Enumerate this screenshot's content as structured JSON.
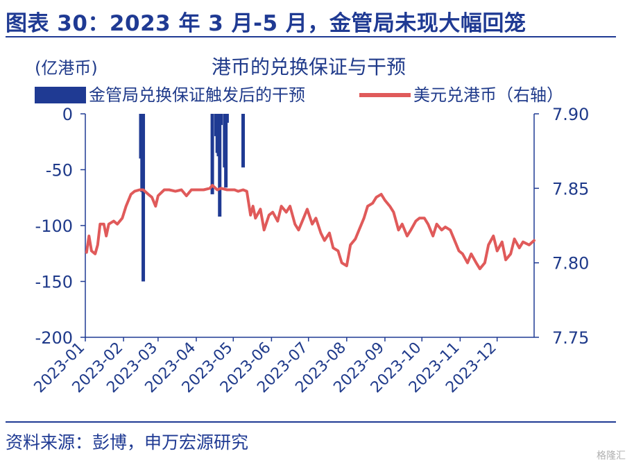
{
  "figure_title": "图表 30：2023 年 3 月-5 月，金管局未现大幅回笼",
  "source": "资料来源：彭博，申万宏源研究",
  "watermark": "格隆汇",
  "colors": {
    "intervention": "#1f3a93",
    "usdhkd": "#e05a5a",
    "axis": "#1f3a93"
  },
  "chart_data": {
    "type": "bar+line",
    "title": "港币的兑换保证与干预",
    "left_axis_unit": "(亿港币)",
    "legend": [
      "金管局兑换保证触发后的干预",
      "美元兑港币（右轴）"
    ],
    "legend_placement": "top",
    "y_left": {
      "range": [
        -200,
        0
      ],
      "ticks": [
        0,
        -50,
        -100,
        -150,
        -200
      ]
    },
    "y_right": {
      "range": [
        7.75,
        7.9
      ],
      "ticks": [
        "7.90",
        "7.85",
        "7.80",
        "7.75"
      ]
    },
    "x_range": [
      "2023-01-01",
      "2023-12-31"
    ],
    "x_ticks": [
      "2023-01",
      "2023-02",
      "2023-03",
      "2023-04",
      "2023-05",
      "2023-06",
      "2023-07",
      "2023-08",
      "2023-09",
      "2023-10",
      "2023-11",
      "2023-12"
    ],
    "grid": false,
    "series": [
      {
        "name": "金管局兑换保证触发后的干预",
        "kind": "bar",
        "axis": "left",
        "points": [
          {
            "x": "2023-02-15",
            "y": -40
          },
          {
            "x": "2023-02-16",
            "y": -70
          },
          {
            "x": "2023-02-17",
            "y": -150
          },
          {
            "x": "2023-04-14",
            "y": -72
          },
          {
            "x": "2023-04-17",
            "y": -20
          },
          {
            "x": "2023-04-18",
            "y": -35
          },
          {
            "x": "2023-04-19",
            "y": -38
          },
          {
            "x": "2023-04-20",
            "y": -92
          },
          {
            "x": "2023-04-21",
            "y": -10
          },
          {
            "x": "2023-04-24",
            "y": -48
          },
          {
            "x": "2023-04-25",
            "y": -66
          },
          {
            "x": "2023-04-26",
            "y": -8
          },
          {
            "x": "2023-05-09",
            "y": -48
          }
        ]
      },
      {
        "name": "美元兑港币（右轴）",
        "kind": "line",
        "axis": "right",
        "points": [
          {
            "x": "2023-01-02",
            "y": 7.807
          },
          {
            "x": "2023-01-04",
            "y": 7.818
          },
          {
            "x": "2023-01-06",
            "y": 7.808
          },
          {
            "x": "2023-01-09",
            "y": 7.806
          },
          {
            "x": "2023-01-11",
            "y": 7.812
          },
          {
            "x": "2023-01-13",
            "y": 7.826
          },
          {
            "x": "2023-01-16",
            "y": 7.826
          },
          {
            "x": "2023-01-18",
            "y": 7.818
          },
          {
            "x": "2023-01-20",
            "y": 7.826
          },
          {
            "x": "2023-01-24",
            "y": 7.828
          },
          {
            "x": "2023-01-27",
            "y": 7.826
          },
          {
            "x": "2023-01-31",
            "y": 7.83
          },
          {
            "x": "2023-02-03",
            "y": 7.838
          },
          {
            "x": "2023-02-07",
            "y": 7.846
          },
          {
            "x": "2023-02-10",
            "y": 7.848
          },
          {
            "x": "2023-02-14",
            "y": 7.849
          },
          {
            "x": "2023-02-17",
            "y": 7.849
          },
          {
            "x": "2023-02-21",
            "y": 7.846
          },
          {
            "x": "2023-02-24",
            "y": 7.844
          },
          {
            "x": "2023-02-27",
            "y": 7.838
          },
          {
            "x": "2023-03-01",
            "y": 7.845
          },
          {
            "x": "2023-03-06",
            "y": 7.849
          },
          {
            "x": "2023-03-10",
            "y": 7.849
          },
          {
            "x": "2023-03-15",
            "y": 7.848
          },
          {
            "x": "2023-03-20",
            "y": 7.849
          },
          {
            "x": "2023-03-24",
            "y": 7.845
          },
          {
            "x": "2023-03-28",
            "y": 7.849
          },
          {
            "x": "2023-04-03",
            "y": 7.849
          },
          {
            "x": "2023-04-07",
            "y": 7.849
          },
          {
            "x": "2023-04-12",
            "y": 7.85
          },
          {
            "x": "2023-04-14",
            "y": 7.852
          },
          {
            "x": "2023-04-18",
            "y": 7.849
          },
          {
            "x": "2023-04-21",
            "y": 7.85
          },
          {
            "x": "2023-04-26",
            "y": 7.849
          },
          {
            "x": "2023-05-02",
            "y": 7.849
          },
          {
            "x": "2023-05-05",
            "y": 7.848
          },
          {
            "x": "2023-05-09",
            "y": 7.849
          },
          {
            "x": "2023-05-12",
            "y": 7.848
          },
          {
            "x": "2023-05-15",
            "y": 7.832
          },
          {
            "x": "2023-05-17",
            "y": 7.838
          },
          {
            "x": "2023-05-19",
            "y": 7.83
          },
          {
            "x": "2023-05-23",
            "y": 7.836
          },
          {
            "x": "2023-05-26",
            "y": 7.822
          },
          {
            "x": "2023-05-30",
            "y": 7.832
          },
          {
            "x": "2023-06-02",
            "y": 7.834
          },
          {
            "x": "2023-06-06",
            "y": 7.828
          },
          {
            "x": "2023-06-09",
            "y": 7.838
          },
          {
            "x": "2023-06-13",
            "y": 7.834
          },
          {
            "x": "2023-06-16",
            "y": 7.838
          },
          {
            "x": "2023-06-20",
            "y": 7.826
          },
          {
            "x": "2023-06-23",
            "y": 7.822
          },
          {
            "x": "2023-06-27",
            "y": 7.83
          },
          {
            "x": "2023-06-30",
            "y": 7.836
          },
          {
            "x": "2023-07-04",
            "y": 7.826
          },
          {
            "x": "2023-07-07",
            "y": 7.83
          },
          {
            "x": "2023-07-11",
            "y": 7.82
          },
          {
            "x": "2023-07-14",
            "y": 7.815
          },
          {
            "x": "2023-07-18",
            "y": 7.82
          },
          {
            "x": "2023-07-21",
            "y": 7.81
          },
          {
            "x": "2023-07-25",
            "y": 7.808
          },
          {
            "x": "2023-07-28",
            "y": 7.8
          },
          {
            "x": "2023-08-01",
            "y": 7.798
          },
          {
            "x": "2023-08-04",
            "y": 7.812
          },
          {
            "x": "2023-08-08",
            "y": 7.816
          },
          {
            "x": "2023-08-11",
            "y": 7.822
          },
          {
            "x": "2023-08-15",
            "y": 7.83
          },
          {
            "x": "2023-08-18",
            "y": 7.838
          },
          {
            "x": "2023-08-22",
            "y": 7.84
          },
          {
            "x": "2023-08-25",
            "y": 7.844
          },
          {
            "x": "2023-08-29",
            "y": 7.846
          },
          {
            "x": "2023-09-01",
            "y": 7.842
          },
          {
            "x": "2023-09-05",
            "y": 7.838
          },
          {
            "x": "2023-09-08",
            "y": 7.834
          },
          {
            "x": "2023-09-12",
            "y": 7.822
          },
          {
            "x": "2023-09-15",
            "y": 7.826
          },
          {
            "x": "2023-09-19",
            "y": 7.818
          },
          {
            "x": "2023-09-22",
            "y": 7.822
          },
          {
            "x": "2023-09-26",
            "y": 7.828
          },
          {
            "x": "2023-09-29",
            "y": 7.83
          },
          {
            "x": "2023-10-03",
            "y": 7.83
          },
          {
            "x": "2023-10-06",
            "y": 7.826
          },
          {
            "x": "2023-10-10",
            "y": 7.818
          },
          {
            "x": "2023-10-13",
            "y": 7.826
          },
          {
            "x": "2023-10-17",
            "y": 7.822
          },
          {
            "x": "2023-10-20",
            "y": 7.824
          },
          {
            "x": "2023-10-24",
            "y": 7.822
          },
          {
            "x": "2023-10-27",
            "y": 7.816
          },
          {
            "x": "2023-10-31",
            "y": 7.808
          },
          {
            "x": "2023-11-03",
            "y": 7.806
          },
          {
            "x": "2023-11-07",
            "y": 7.8
          },
          {
            "x": "2023-11-10",
            "y": 7.806
          },
          {
            "x": "2023-11-14",
            "y": 7.8
          },
          {
            "x": "2023-11-17",
            "y": 7.796
          },
          {
            "x": "2023-11-21",
            "y": 7.8
          },
          {
            "x": "2023-11-24",
            "y": 7.812
          },
          {
            "x": "2023-11-28",
            "y": 7.818
          },
          {
            "x": "2023-12-01",
            "y": 7.808
          },
          {
            "x": "2023-12-05",
            "y": 7.814
          },
          {
            "x": "2023-12-08",
            "y": 7.802
          },
          {
            "x": "2023-12-12",
            "y": 7.806
          },
          {
            "x": "2023-12-15",
            "y": 7.816
          },
          {
            "x": "2023-12-19",
            "y": 7.81
          },
          {
            "x": "2023-12-22",
            "y": 7.814
          },
          {
            "x": "2023-12-27",
            "y": 7.812
          },
          {
            "x": "2023-12-31",
            "y": 7.815
          }
        ]
      }
    ]
  }
}
